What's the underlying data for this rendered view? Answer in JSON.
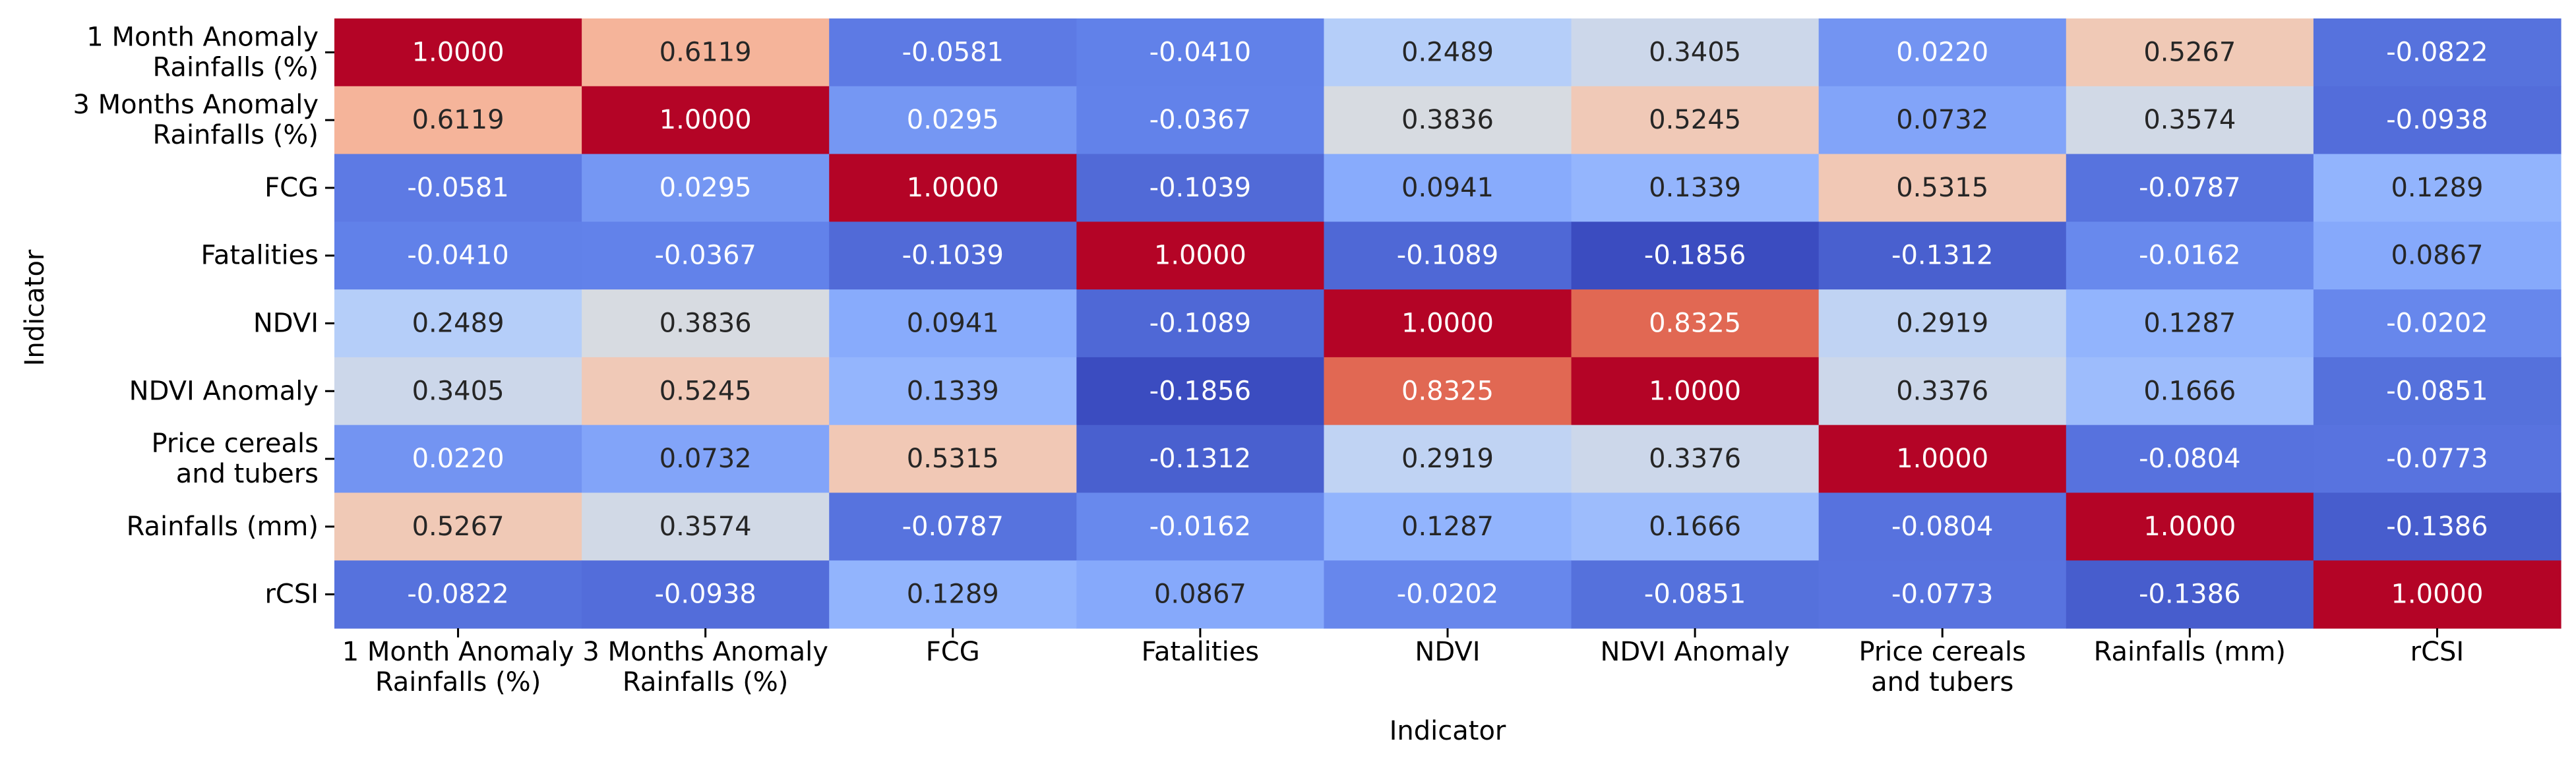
{
  "chart_data": {
    "type": "heatmap",
    "xlabel": "Indicator",
    "ylabel": "Indicator",
    "row_labels": [
      "1 Month Anomaly Rainfalls (%)",
      "3 Months Anomaly Rainfalls (%)",
      "FCG",
      "Fatalities",
      "NDVI",
      "NDVI Anomaly",
      "Price cereals and tubers",
      "Rainfalls (mm)",
      "rCSI"
    ],
    "col_labels": [
      "1 Month Anomaly Rainfalls (%)",
      "3 Months Anomaly Rainfalls (%)",
      "FCG",
      "Fatalities",
      "NDVI",
      "NDVI Anomaly",
      "Price cereals and tubers",
      "Rainfalls (mm)",
      "rCSI"
    ],
    "values": [
      [
        1.0,
        0.6119,
        -0.0581,
        -0.041,
        0.2489,
        0.3405,
        0.022,
        0.5267,
        -0.0822
      ],
      [
        0.6119,
        1.0,
        0.0295,
        -0.0367,
        0.3836,
        0.5245,
        0.0732,
        0.3574,
        -0.0938
      ],
      [
        -0.0581,
        0.0295,
        1.0,
        -0.1039,
        0.0941,
        0.1339,
        0.5315,
        -0.0787,
        0.1289
      ],
      [
        -0.041,
        -0.0367,
        -0.1039,
        1.0,
        -0.1089,
        -0.1856,
        -0.1312,
        -0.0162,
        0.0867
      ],
      [
        0.2489,
        0.3836,
        0.0941,
        -0.1089,
        1.0,
        0.8325,
        0.2919,
        0.1287,
        -0.0202
      ],
      [
        0.3405,
        0.5245,
        0.1339,
        -0.1856,
        0.8325,
        1.0,
        0.3376,
        0.1666,
        -0.0851
      ],
      [
        0.022,
        0.0732,
        0.5315,
        -0.1312,
        0.2919,
        0.3376,
        1.0,
        -0.0804,
        -0.0773
      ],
      [
        0.5267,
        0.3574,
        -0.0787,
        -0.0162,
        0.1287,
        0.1666,
        -0.0804,
        1.0,
        -0.1386
      ],
      [
        -0.0822,
        -0.0938,
        0.1289,
        0.0867,
        -0.0202,
        -0.0851,
        -0.0773,
        -0.1386,
        1.0
      ]
    ],
    "value_format": "4 decimals",
    "colormap": "coolwarm",
    "vmin": -0.1856,
    "vmax": 1.0,
    "colorbar": false,
    "grid": false
  }
}
